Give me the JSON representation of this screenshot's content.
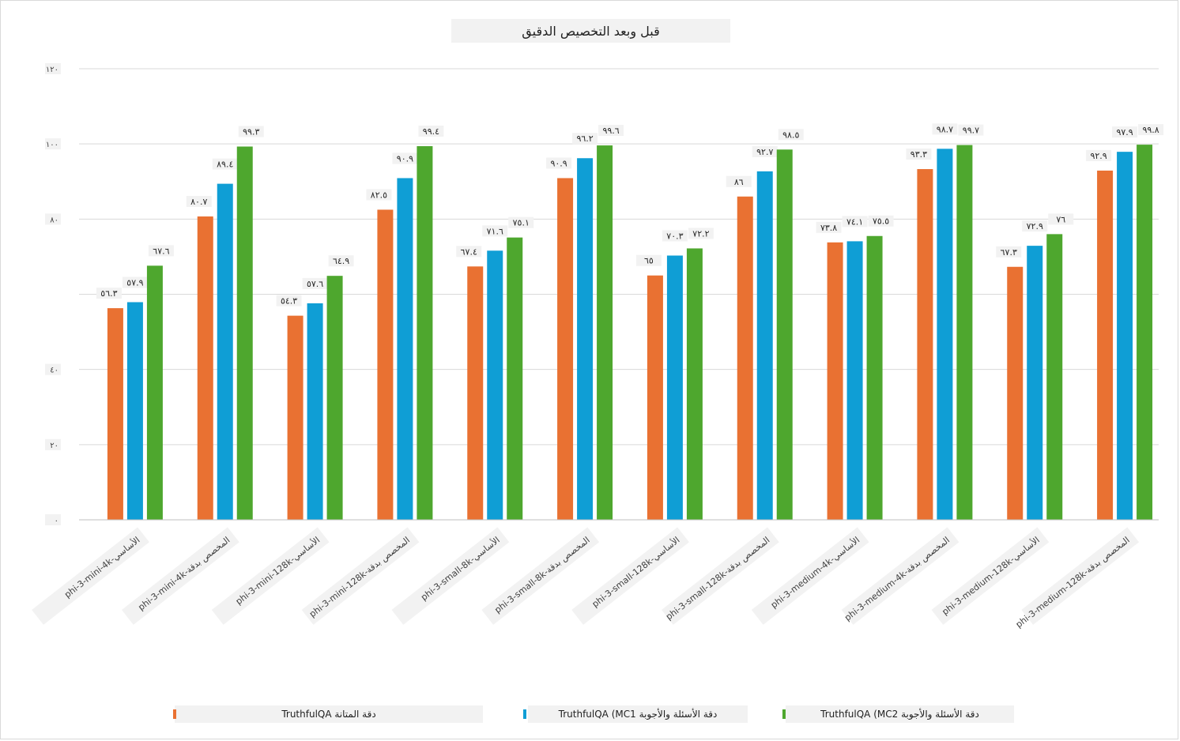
{
  "chart_data": {
    "type": "bar",
    "title": "قبل وبعد التخصيص الدقيق",
    "xlabel": "",
    "ylabel": "",
    "ylim": [
      0,
      120
    ],
    "yticks": [
      "٠",
      "٢٠",
      "٤٠",
      "٨٠",
      "١٠٠",
      "١٢٠"
    ],
    "ytick_values": [
      0,
      20,
      40,
      80,
      100,
      120
    ],
    "grid": true,
    "legend_position": "bottom",
    "categories": [
      "phi-3-mini-4k-الأساسي",
      "phi-3-mini-4k-المخصص بدقة",
      "phi-3-mini-128k-الأساسي",
      "phi-3-mini-128k-المخصص بدقة",
      "phi-3-small-8k-الأساسي",
      "phi-3-small-8k-المخصص بدقة",
      "phi-3-small-128k-الأساسي",
      "phi-3-small-128k-المخصص بدقة",
      "phi-3-medium-4k-الأساسي",
      "phi-3-medium-4k-المخصص بدقة",
      "phi-3-medium-128k-الأساسي",
      "phi-3-medium-128k-المخصص بدقة"
    ],
    "series": [
      {
        "name": "دقة المتانة TruthfulQA",
        "color": "#e97132",
        "values": [
          56.3,
          80.7,
          54.3,
          82.5,
          67.4,
          90.9,
          65,
          86,
          73.8,
          93.3,
          67.3,
          92.9
        ],
        "labels": [
          "٥٦.٣",
          "٨٠.٧",
          "٥٤.٣",
          "٨٢.٥",
          "٦٧.٤",
          "٩٠.٩",
          "٦٥",
          "٨٦",
          "٧٣.٨",
          "٩٣.٣",
          "٦٧.٣",
          "٩٢.٩"
        ]
      },
      {
        "name": "دقة الأسئلة والأجوبة TruthfulQA (MC1",
        "color": "#0f9ed5",
        "values": [
          57.9,
          89.4,
          57.6,
          90.9,
          71.6,
          96.2,
          70.3,
          92.7,
          74.1,
          98.7,
          72.9,
          97.9
        ],
        "labels": [
          "٥٧.٩",
          "٨٩.٤",
          "٥٧.٦",
          "٩٠.٩",
          "٧١.٦",
          "٩٦.٢",
          "٧٠.٣",
          "٩٢.٧",
          "٧٤.١",
          "٩٨.٧",
          "٧٢.٩",
          "٩٧.٩"
        ]
      },
      {
        "name": "دقة الأسئلة والأجوبة TruthfulQA (MC2",
        "color": "#4ea72e",
        "values": [
          67.6,
          99.3,
          64.9,
          99.4,
          75.1,
          99.6,
          72.2,
          98.5,
          75.5,
          99.7,
          76,
          99.8
        ],
        "labels": [
          "٦٧.٦",
          "٩٩.٣",
          "٦٤.٩",
          "٩٩.٤",
          "٧٥.١",
          "٩٩.٦",
          "٧٢.٢",
          "٩٨.٥",
          "٧٥.٥",
          "٩٩.٧",
          "٧٦",
          "٩٩.٨"
        ]
      }
    ]
  }
}
